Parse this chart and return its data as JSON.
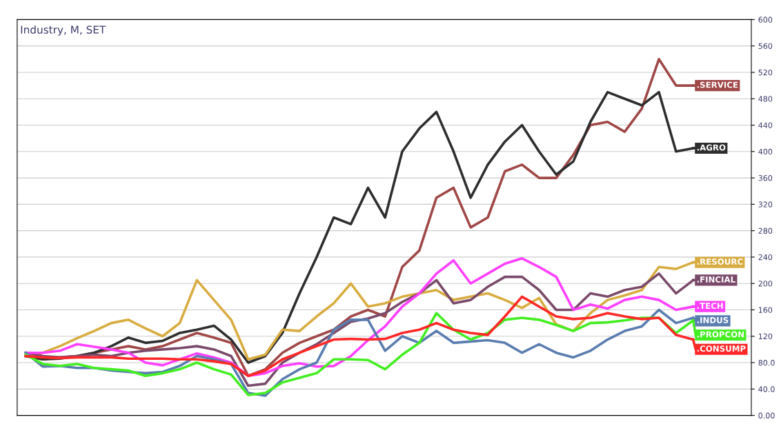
{
  "chart_data": {
    "type": "line",
    "title": "Industry, M, SET",
    "categories": [
      null,
      null,
      null,
      null,
      null,
      null,
      null,
      null,
      null,
      null,
      null,
      null,
      null,
      null,
      null,
      null,
      null,
      null,
      null,
      null,
      null,
      null,
      null,
      null,
      null,
      null,
      null,
      null,
      null,
      null,
      null,
      null,
      null,
      null,
      null,
      null,
      null,
      null,
      null,
      null
    ],
    "series": [
      {
        "name": ".SERVICE",
        "color": "#a04848",
        "values": [
          90,
          85,
          88,
          90,
          95,
          100,
          105,
          100,
          105,
          115,
          125,
          118,
          110,
          60,
          70,
          95,
          110,
          120,
          130,
          150,
          160,
          150,
          225,
          250,
          330,
          345,
          285,
          300,
          370,
          380,
          360,
          360,
          395,
          440,
          445,
          430,
          465,
          540,
          500,
          500
        ]
      },
      {
        "name": ".AGRO",
        "color": "#2e2e2e",
        "values": [
          90,
          85,
          86,
          90,
          95,
          105,
          118,
          110,
          113,
          125,
          130,
          136,
          115,
          80,
          90,
          125,
          185,
          240,
          300,
          290,
          345,
          300,
          400,
          435,
          460,
          400,
          330,
          380,
          415,
          440,
          400,
          365,
          385,
          445,
          490,
          480,
          470,
          490,
          400,
          405
        ]
      },
      {
        "name": ".RESOURC",
        "color": "#d8ac40",
        "values": [
          90,
          95,
          105,
          117,
          128,
          140,
          145,
          132,
          120,
          140,
          205,
          175,
          145,
          85,
          92,
          130,
          128,
          150,
          170,
          200,
          165,
          170,
          180,
          185,
          190,
          175,
          180,
          185,
          175,
          163,
          178,
          138,
          128,
          155,
          175,
          182,
          190,
          225,
          222,
          232
        ]
      },
      {
        "name": ".FINCIAL",
        "color": "#7a4a6a",
        "values": [
          95,
          90,
          88,
          90,
          92,
          90,
          95,
          98,
          100,
          102,
          105,
          100,
          90,
          45,
          48,
          80,
          95,
          108,
          125,
          142,
          147,
          155,
          172,
          185,
          205,
          170,
          175,
          195,
          210,
          210,
          190,
          160,
          160,
          185,
          180,
          190,
          195,
          215,
          185,
          205
        ]
      },
      {
        "name": ".TECH",
        "color": "#ff40ff",
        "values": [
          95,
          95,
          98,
          108,
          104,
          100,
          95,
          80,
          76,
          85,
          94,
          88,
          80,
          60,
          64,
          75,
          79,
          74,
          75,
          90,
          114,
          135,
          165,
          185,
          215,
          235,
          200,
          215,
          230,
          238,
          225,
          210,
          160,
          168,
          162,
          175,
          180,
          175,
          160,
          165
        ]
      },
      {
        "name": ".INDUS",
        "color": "#5a7db0",
        "values": [
          95,
          74,
          75,
          72,
          72,
          68,
          66,
          64,
          66,
          75,
          90,
          85,
          78,
          34,
          30,
          55,
          70,
          80,
          130,
          145,
          145,
          98,
          120,
          110,
          128,
          110,
          112,
          114,
          110,
          95,
          108,
          95,
          88,
          98,
          115,
          128,
          135,
          160,
          140,
          148
        ]
      },
      {
        "name": ".PROPCON",
        "color": "#44ee22",
        "values": [
          92,
          78,
          75,
          78,
          72,
          70,
          68,
          60,
          64,
          70,
          80,
          70,
          62,
          31,
          34,
          50,
          57,
          64,
          85,
          85,
          84,
          70,
          92,
          110,
          155,
          130,
          115,
          125,
          145,
          148,
          145,
          137,
          128,
          140,
          141,
          144,
          148,
          148,
          125,
          144
        ]
      },
      {
        "name": ".CONSUMP",
        "color": "#ff2828",
        "values": [
          90,
          88,
          87,
          88,
          88,
          88,
          86,
          86,
          86,
          85,
          85,
          82,
          78,
          60,
          68,
          85,
          95,
          105,
          115,
          116,
          115,
          116,
          125,
          130,
          140,
          130,
          125,
          122,
          150,
          180,
          165,
          150,
          146,
          148,
          155,
          150,
          146,
          148,
          122,
          115
        ]
      }
    ],
    "ylim": [
      0,
      600
    ],
    "yticks": [
      {
        "value": 0,
        "label": "0.00"
      },
      {
        "value": 40,
        "label": "40.0"
      },
      {
        "value": 80,
        "label": "80.0"
      },
      120,
      160,
      200,
      240,
      280,
      320,
      360,
      400,
      440,
      480,
      520,
      560,
      600
    ],
    "tick_labels": "y",
    "grid": "y",
    "legend": "right",
    "marker": "none",
    "line_style": "solid"
  }
}
